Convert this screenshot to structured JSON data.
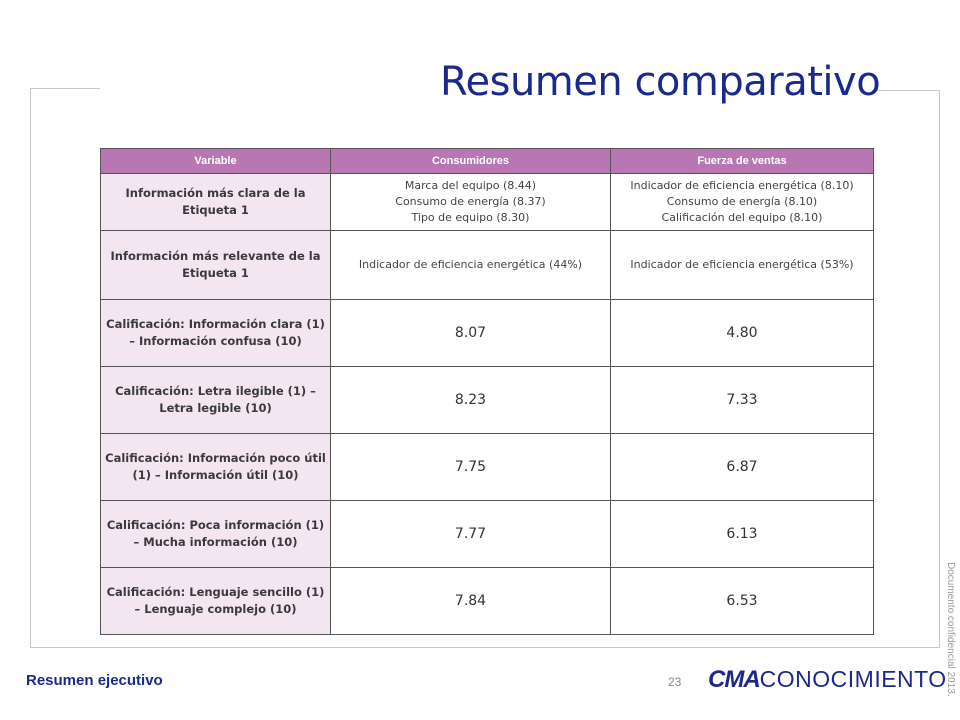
{
  "slide": {
    "title": "Resumen comparativo",
    "footer_label": "Resumen ejecutivo",
    "page_number": "23",
    "side_note": "Documento confidencial 2013.",
    "logo": {
      "part1": "CMA",
      "part2": "CONOCIMIENTO"
    }
  },
  "table": {
    "headers": [
      "Variable",
      "Consumidores",
      "Fuerza de ventas"
    ],
    "rows": [
      {
        "variable": "Información más clara de la Etiqueta 1",
        "consumidores": [
          "Marca del equipo (8.44)",
          "Consumo de energía (8.37)",
          "Tipo de equipo (8.30)"
        ],
        "fuerza": [
          "Indicador de eficiencia energética (8.10)",
          "Consumo de energía (8.10)",
          "Calificación del equipo (8.10)"
        ]
      },
      {
        "variable": "Información más relevante de la Etiqueta 1",
        "consumidores": "Indicador de eficiencia energética (44%)",
        "fuerza": "Indicador de eficiencia energética (53%)"
      },
      {
        "variable": "Calificación: Información clara (1) – Información confusa (10)",
        "consumidores": "8.07",
        "fuerza": "4.80"
      },
      {
        "variable": "Calificación: Letra ilegible (1) – Letra legible (10)",
        "consumidores": "8.23",
        "fuerza": "7.33"
      },
      {
        "variable": "Calificación: Información poco útil (1) – Información útil (10)",
        "consumidores": "7.75",
        "fuerza": "6.87"
      },
      {
        "variable": "Calificación: Poca información (1) – Mucha información (10)",
        "consumidores": "7.77",
        "fuerza": "6.13"
      },
      {
        "variable": "Calificación: Lenguaje sencillo (1) – Lenguaje complejo (10)",
        "consumidores": "7.84",
        "fuerza": "6.53"
      }
    ]
  },
  "colors": {
    "title": "#1a2a8c",
    "header_bg": "#b877b3",
    "variable_bg": "#f3e6f1"
  }
}
